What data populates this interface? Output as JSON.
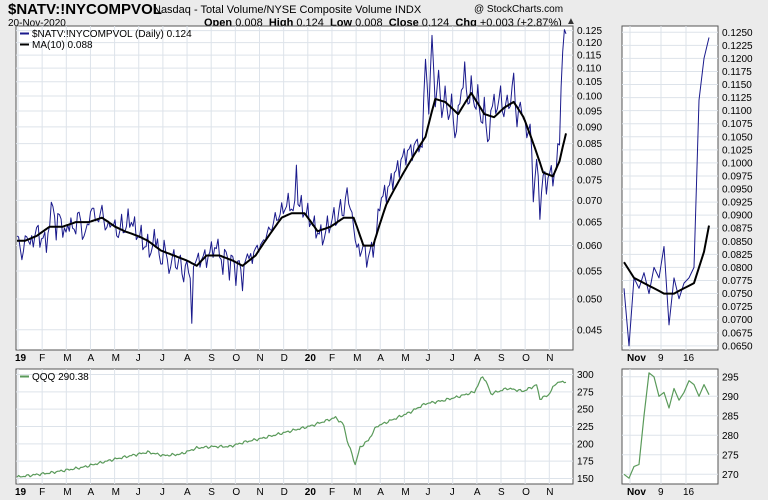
{
  "header": {
    "symbol": "$NATV:!NYCOMPVOL",
    "description": "Nasdaq - Total Volume/NYSE Composite Volume  INDX",
    "date": "20-Nov-2020",
    "open_label": "Open",
    "open": "0.008",
    "high_label": "High",
    "high": "0.124",
    "low_label": "Low",
    "low": "0.008",
    "close_label": "Close",
    "close": "0.124",
    "chg_label": "Chg",
    "chg": "+0.003 (+2.87%)",
    "logo": "@ StockCharts.com",
    "arrow": "▲"
  },
  "colors": {
    "ratio_line": "#1a1a8c",
    "ma_line": "#000000",
    "qqq_line": "#5a9a5a",
    "panel_bg": "#ffffff",
    "grid": "#dde3ea",
    "page_bg": "#ebebeb"
  },
  "chart_data": [
    {
      "name": "main-panel",
      "type": "line",
      "series": [
        {
          "name": "$NATV:!NYCOMPVOL (Daily) 0.124",
          "color": "#1a1a8c"
        },
        {
          "name": "MA(10) 0.088",
          "color": "#000000"
        }
      ],
      "x_tick_labels": [
        "19",
        "F",
        "M",
        "A",
        "M",
        "J",
        "J",
        "A",
        "S",
        "O",
        "N",
        "D",
        "20",
        "F",
        "M",
        "A",
        "M",
        "J",
        "J",
        "A",
        "S",
        "O",
        "N"
      ],
      "y_tick_labels": [
        "0.045",
        "0.050",
        "0.055",
        "0.060",
        "0.065",
        "0.070",
        "0.075",
        "0.080",
        "0.085",
        "0.090",
        "0.095",
        "0.100",
        "0.105",
        "0.110",
        "0.115",
        "0.120",
        "0.125"
      ],
      "ylim": [
        0.042,
        0.127
      ],
      "ratio_keypoints": [
        [
          0,
          0.062
        ],
        [
          3,
          0.058
        ],
        [
          6,
          0.062
        ],
        [
          10,
          0.06
        ],
        [
          12,
          0.065
        ],
        [
          14,
          0.06
        ],
        [
          16,
          0.063
        ],
        [
          18,
          0.059
        ],
        [
          20,
          0.066
        ],
        [
          22,
          0.069
        ],
        [
          24,
          0.063
        ],
        [
          26,
          0.067
        ],
        [
          29,
          0.062
        ],
        [
          32,
          0.065
        ],
        [
          35,
          0.063
        ],
        [
          38,
          0.067
        ],
        [
          41,
          0.061
        ],
        [
          44,
          0.066
        ],
        [
          47,
          0.068
        ],
        [
          50,
          0.064
        ],
        [
          52,
          0.07
        ],
        [
          54,
          0.062
        ],
        [
          56,
          0.066
        ],
        [
          58,
          0.063
        ],
        [
          60,
          0.066
        ],
        [
          62,
          0.06
        ],
        [
          64,
          0.067
        ],
        [
          66,
          0.061
        ],
        [
          68,
          0.068
        ],
        [
          70,
          0.063
        ],
        [
          72,
          0.066
        ],
        [
          74,
          0.06
        ],
        [
          76,
          0.064
        ],
        [
          78,
          0.058
        ],
        [
          80,
          0.062
        ],
        [
          82,
          0.057
        ],
        [
          84,
          0.063
        ],
        [
          86,
          0.06
        ],
        [
          88,
          0.056
        ],
        [
          90,
          0.06
        ],
        [
          92,
          0.057
        ],
        [
          94,
          0.055
        ],
        [
          96,
          0.059
        ],
        [
          98,
          0.055
        ],
        [
          100,
          0.058
        ],
        [
          102,
          0.053
        ],
        [
          104,
          0.057
        ],
        [
          106,
          0.054
        ],
        [
          107,
          0.045
        ],
        [
          108,
          0.056
        ],
        [
          110,
          0.058
        ],
        [
          112,
          0.056
        ],
        [
          114,
          0.059
        ],
        [
          116,
          0.056
        ],
        [
          118,
          0.06
        ],
        [
          120,
          0.058
        ],
        [
          122,
          0.061
        ],
        [
          124,
          0.058
        ],
        [
          126,
          0.056
        ],
        [
          128,
          0.059
        ],
        [
          130,
          0.055
        ],
        [
          132,
          0.058
        ],
        [
          134,
          0.054
        ],
        [
          136,
          0.057
        ],
        [
          138,
          0.053
        ],
        [
          140,
          0.057
        ],
        [
          142,
          0.059
        ],
        [
          144,
          0.056
        ],
        [
          146,
          0.061
        ],
        [
          148,
          0.058
        ],
        [
          150,
          0.062
        ],
        [
          152,
          0.06
        ],
        [
          154,
          0.065
        ],
        [
          156,
          0.062
        ],
        [
          158,
          0.068
        ],
        [
          160,
          0.064
        ],
        [
          162,
          0.07
        ],
        [
          164,
          0.066
        ],
        [
          166,
          0.072
        ],
        [
          168,
          0.066
        ],
        [
          170,
          0.07
        ],
        [
          171,
          0.081
        ],
        [
          172,
          0.067
        ],
        [
          174,
          0.071
        ],
        [
          176,
          0.065
        ],
        [
          178,
          0.069
        ],
        [
          180,
          0.063
        ],
        [
          182,
          0.066
        ],
        [
          184,
          0.061
        ],
        [
          186,
          0.064
        ],
        [
          188,
          0.06
        ],
        [
          190,
          0.066
        ],
        [
          192,
          0.063
        ],
        [
          194,
          0.068
        ],
        [
          196,
          0.064
        ],
        [
          198,
          0.07
        ],
        [
          200,
          0.066
        ],
        [
          202,
          0.073
        ],
        [
          204,
          0.068
        ],
        [
          206,
          0.064
        ],
        [
          208,
          0.06
        ],
        [
          210,
          0.058
        ],
        [
          212,
          0.061
        ],
        [
          214,
          0.056
        ],
        [
          216,
          0.06
        ],
        [
          218,
          0.058
        ],
        [
          220,
          0.064
        ],
        [
          222,
          0.068
        ],
        [
          224,
          0.073
        ],
        [
          226,
          0.07
        ],
        [
          228,
          0.076
        ],
        [
          230,
          0.073
        ],
        [
          232,
          0.08
        ],
        [
          234,
          0.076
        ],
        [
          236,
          0.084
        ],
        [
          238,
          0.079
        ],
        [
          240,
          0.086
        ],
        [
          242,
          0.08
        ],
        [
          244,
          0.088
        ],
        [
          246,
          0.082
        ],
        [
          248,
          0.086
        ],
        [
          250,
          0.112
        ],
        [
          252,
          0.096
        ],
        [
          254,
          0.121
        ],
        [
          256,
          0.098
        ],
        [
          258,
          0.107
        ],
        [
          260,
          0.094
        ],
        [
          262,
          0.101
        ],
        [
          264,
          0.093
        ],
        [
          266,
          0.098
        ],
        [
          268,
          0.087
        ],
        [
          270,
          0.094
        ],
        [
          272,
          0.102
        ],
        [
          274,
          0.109
        ],
        [
          276,
          0.097
        ],
        [
          278,
          0.104
        ],
        [
          280,
          0.096
        ],
        [
          282,
          0.101
        ],
        [
          284,
          0.091
        ],
        [
          286,
          0.097
        ],
        [
          288,
          0.085
        ],
        [
          290,
          0.093
        ],
        [
          292,
          0.1
        ],
        [
          294,
          0.094
        ],
        [
          296,
          0.103
        ],
        [
          298,
          0.092
        ],
        [
          300,
          0.1
        ],
        [
          302,
          0.096
        ],
        [
          304,
          0.108
        ],
        [
          306,
          0.09
        ],
        [
          308,
          0.098
        ],
        [
          310,
          0.093
        ],
        [
          312,
          0.087
        ],
        [
          314,
          0.092
        ],
        [
          316,
          0.07
        ],
        [
          318,
          0.082
        ],
        [
          320,
          0.066
        ],
        [
          322,
          0.078
        ],
        [
          324,
          0.072
        ],
        [
          326,
          0.079
        ],
        [
          328,
          0.074
        ],
        [
          330,
          0.08
        ],
        [
          332,
          0.085
        ],
        [
          334,
          0.12
        ],
        [
          336,
          0.124
        ]
      ],
      "ma_keypoints": [
        [
          5,
          0.061
        ],
        [
          12,
          0.062
        ],
        [
          20,
          0.064
        ],
        [
          28,
          0.064
        ],
        [
          36,
          0.065
        ],
        [
          44,
          0.065
        ],
        [
          52,
          0.066
        ],
        [
          60,
          0.064
        ],
        [
          66,
          0.063
        ],
        [
          74,
          0.062
        ],
        [
          80,
          0.061
        ],
        [
          88,
          0.059
        ],
        [
          96,
          0.058
        ],
        [
          104,
          0.057
        ],
        [
          110,
          0.056
        ],
        [
          116,
          0.058
        ],
        [
          124,
          0.058
        ],
        [
          132,
          0.057
        ],
        [
          138,
          0.056
        ],
        [
          146,
          0.058
        ],
        [
          154,
          0.062
        ],
        [
          162,
          0.066
        ],
        [
          168,
          0.067
        ],
        [
          176,
          0.067
        ],
        [
          184,
          0.063
        ],
        [
          192,
          0.064
        ],
        [
          200,
          0.066
        ],
        [
          206,
          0.066
        ],
        [
          212,
          0.06
        ],
        [
          218,
          0.06
        ],
        [
          226,
          0.069
        ],
        [
          234,
          0.075
        ],
        [
          242,
          0.081
        ],
        [
          250,
          0.087
        ],
        [
          256,
          0.099
        ],
        [
          262,
          0.098
        ],
        [
          270,
          0.094
        ],
        [
          278,
          0.101
        ],
        [
          286,
          0.094
        ],
        [
          292,
          0.093
        ],
        [
          298,
          0.096
        ],
        [
          304,
          0.098
        ],
        [
          310,
          0.093
        ],
        [
          316,
          0.085
        ],
        [
          322,
          0.077
        ],
        [
          328,
          0.076
        ],
        [
          332,
          0.08
        ],
        [
          336,
          0.088
        ]
      ]
    },
    {
      "name": "main-zoom-panel",
      "type": "line",
      "x_tick_labels": [
        "Nov",
        "9",
        "16"
      ],
      "y_tick_labels": [
        "0.0650",
        "0.0675",
        "0.0700",
        "0.0725",
        "0.0750",
        "0.0775",
        "0.0800",
        "0.0825",
        "0.0850",
        "0.0875",
        "0.0900",
        "0.0925",
        "0.0950",
        "0.0975",
        "0.1000",
        "0.1025",
        "0.1050",
        "0.1075",
        "0.1100",
        "0.1125",
        "0.1150",
        "0.1175",
        "0.1200",
        "0.1225",
        "0.1250"
      ],
      "ylim": [
        0.0642,
        0.1262
      ],
      "ratio_keypoints": [
        [
          0,
          0.076
        ],
        [
          1,
          0.065
        ],
        [
          2,
          0.078
        ],
        [
          3,
          0.076
        ],
        [
          4,
          0.079
        ],
        [
          5,
          0.075
        ],
        [
          6,
          0.08
        ],
        [
          7,
          0.078
        ],
        [
          8,
          0.084
        ],
        [
          9,
          0.069
        ],
        [
          10,
          0.078
        ],
        [
          11,
          0.074
        ],
        [
          12,
          0.077
        ],
        [
          13,
          0.078
        ],
        [
          14,
          0.08
        ],
        [
          15,
          0.112
        ],
        [
          16,
          0.12
        ],
        [
          17,
          0.124
        ]
      ],
      "ma_keypoints": [
        [
          0,
          0.081
        ],
        [
          2,
          0.078
        ],
        [
          4,
          0.077
        ],
        [
          6,
          0.076
        ],
        [
          8,
          0.075
        ],
        [
          10,
          0.075
        ],
        [
          12,
          0.076
        ],
        [
          14,
          0.077
        ],
        [
          16,
          0.083
        ],
        [
          17,
          0.088
        ]
      ]
    },
    {
      "name": "qqq-panel",
      "type": "line",
      "series": [
        {
          "name": "QQQ 290.38",
          "color": "#5a9a5a"
        }
      ],
      "x_tick_labels": [
        "19",
        "F",
        "M",
        "A",
        "M",
        "J",
        "J",
        "A",
        "S",
        "O",
        "N",
        "D",
        "20",
        "F",
        "M",
        "A",
        "M",
        "J",
        "J",
        "A",
        "S",
        "O",
        "N"
      ],
      "y_tick_labels": [
        "150",
        "175",
        "200",
        "225",
        "250",
        "275",
        "300"
      ],
      "ylim": [
        142,
        308
      ],
      "keypoints": [
        [
          0,
          152
        ],
        [
          20,
          158
        ],
        [
          40,
          166
        ],
        [
          60,
          178
        ],
        [
          80,
          188
        ],
        [
          90,
          183
        ],
        [
          100,
          185
        ],
        [
          110,
          194
        ],
        [
          120,
          196
        ],
        [
          130,
          196
        ],
        [
          140,
          203
        ],
        [
          150,
          208
        ],
        [
          160,
          214
        ],
        [
          170,
          220
        ],
        [
          180,
          226
        ],
        [
          190,
          234
        ],
        [
          195,
          238
        ],
        [
          200,
          227
        ],
        [
          202,
          205
        ],
        [
          205,
          185
        ],
        [
          207,
          170
        ],
        [
          210,
          195
        ],
        [
          215,
          205
        ],
        [
          220,
          225
        ],
        [
          230,
          235
        ],
        [
          240,
          245
        ],
        [
          250,
          258
        ],
        [
          260,
          262
        ],
        [
          270,
          268
        ],
        [
          280,
          275
        ],
        [
          285,
          298
        ],
        [
          288,
          285
        ],
        [
          290,
          272
        ],
        [
          300,
          280
        ],
        [
          310,
          276
        ],
        [
          318,
          285
        ],
        [
          320,
          265
        ],
        [
          325,
          270
        ],
        [
          330,
          288
        ],
        [
          336,
          290
        ]
      ]
    },
    {
      "name": "qqq-zoom-panel",
      "type": "line",
      "x_tick_labels": [
        "Nov",
        "9",
        "16"
      ],
      "y_tick_labels": [
        "270",
        "275",
        "280",
        "285",
        "290",
        "295"
      ],
      "ylim": [
        267.5,
        297
      ],
      "keypoints": [
        [
          0,
          270
        ],
        [
          1,
          269
        ],
        [
          2,
          272
        ],
        [
          3,
          272.5
        ],
        [
          4,
          285
        ],
        [
          5,
          296
        ],
        [
          6,
          295
        ],
        [
          7,
          290
        ],
        [
          8,
          291
        ],
        [
          9,
          287
        ],
        [
          10,
          292
        ],
        [
          11,
          289
        ],
        [
          12,
          291
        ],
        [
          13,
          294
        ],
        [
          14,
          293
        ],
        [
          15,
          290
        ],
        [
          16,
          293
        ],
        [
          17,
          290.4
        ]
      ]
    }
  ]
}
